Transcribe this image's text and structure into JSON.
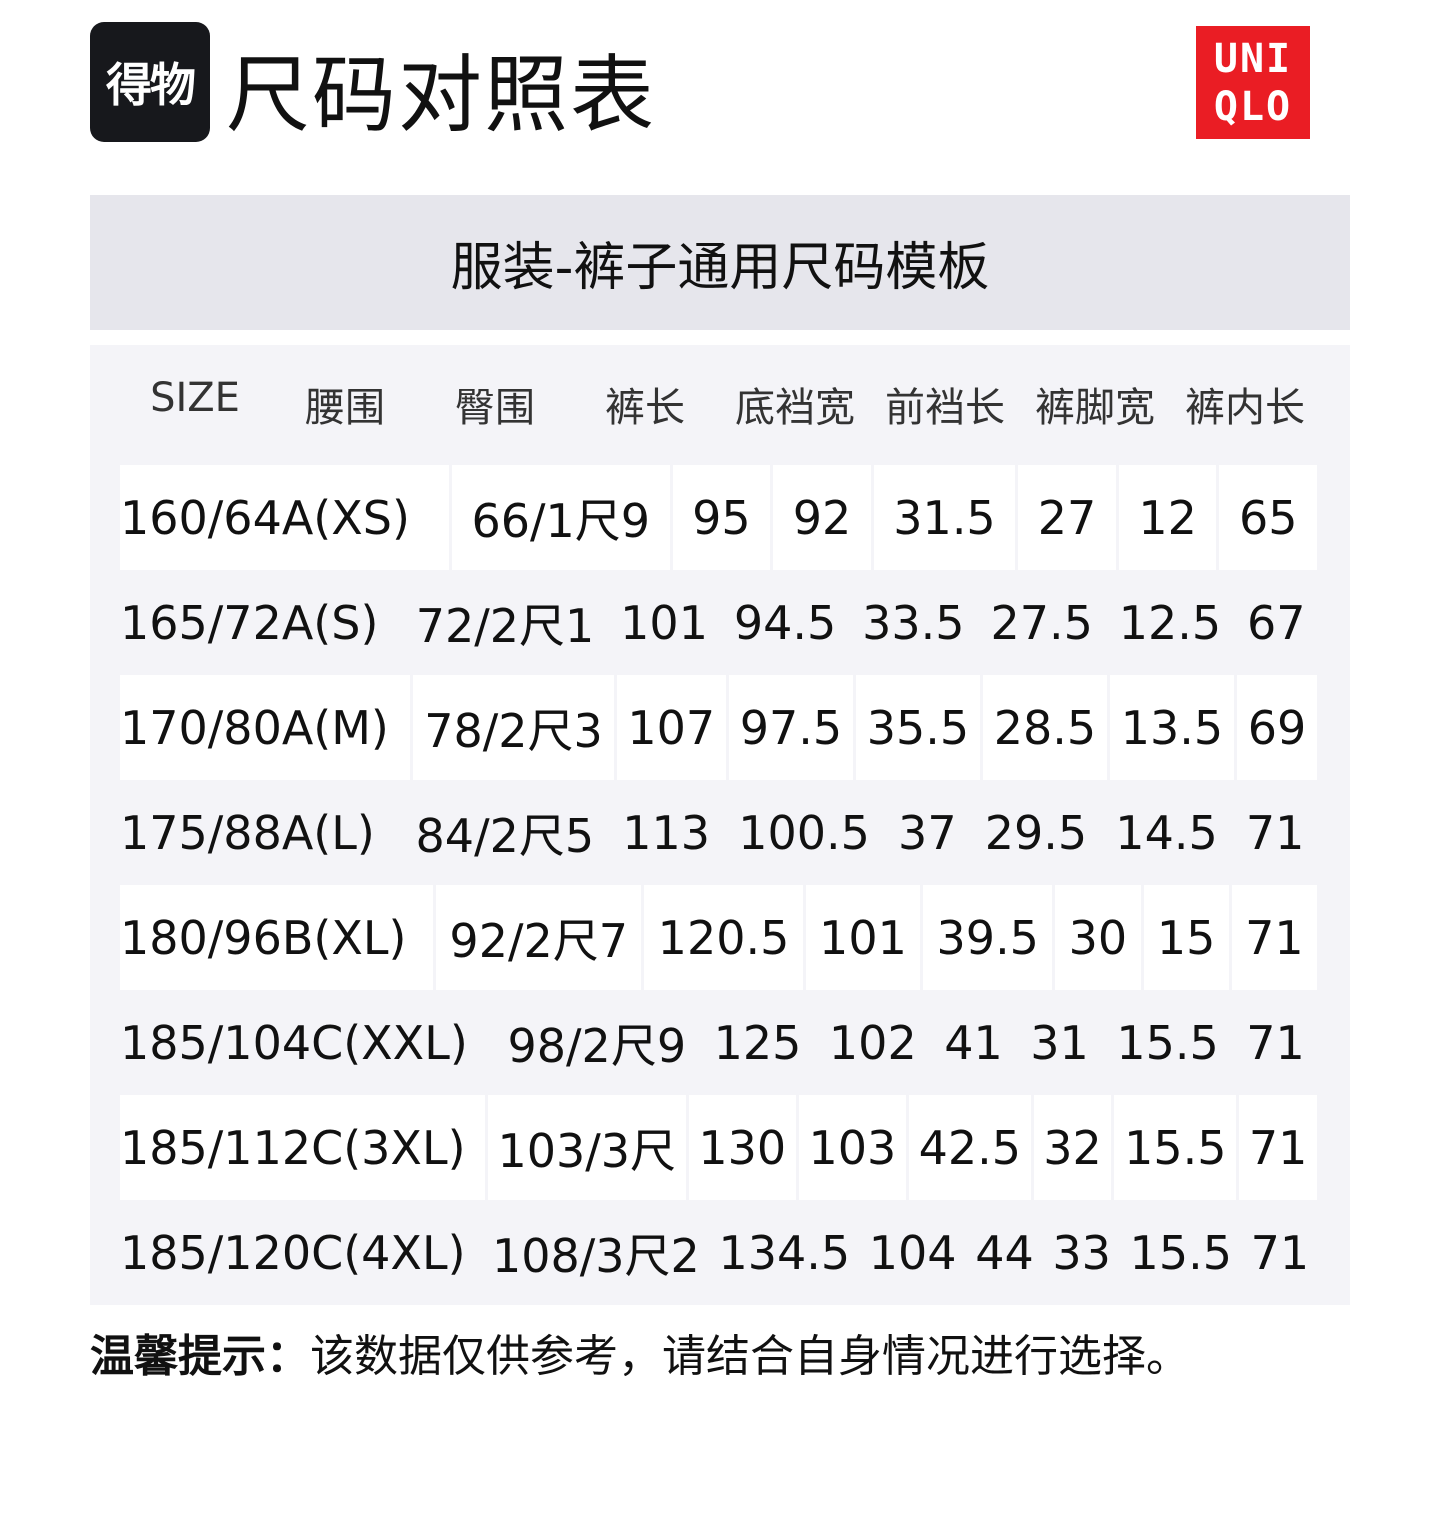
{
  "header": {
    "brand_logo": "得物",
    "title": "尺码对照表",
    "uniqlo_logo": [
      "UNI",
      "QLO"
    ],
    "colors": {
      "uniqlo_red": "#ea1d24",
      "brand_dark": "#17181c"
    }
  },
  "band_title": "服装-裤子通用尺码模板",
  "table": {
    "columns": [
      "SIZE",
      "腰围",
      "臀围",
      "裤长",
      "底裆宽",
      "前裆长",
      "裤脚宽",
      "裤内长"
    ],
    "rows": [
      [
        "160/64A(XS)",
        "66/1尺9",
        "95",
        "92",
        "31.5",
        "27",
        "12",
        "65"
      ],
      [
        "165/72A(S)",
        "72/2尺1",
        "101",
        "94.5",
        "33.5",
        "27.5",
        "12.5",
        "67"
      ],
      [
        "170/80A(M)",
        "78/2尺3",
        "107",
        "97.5",
        "35.5",
        "28.5",
        "13.5",
        "69"
      ],
      [
        "175/88A(L)",
        "84/2尺5",
        "113",
        "100.5",
        "37",
        "29.5",
        "14.5",
        "71"
      ],
      [
        "180/96B(XL)",
        "92/2尺7",
        "120.5",
        "101",
        "39.5",
        "30",
        "15",
        "71"
      ],
      [
        "185/104C(XXL)",
        "98/2尺9",
        "125",
        "102",
        "41",
        "31",
        "15.5",
        "71"
      ],
      [
        "185/112C(3XL)",
        "103/3尺",
        "130",
        "103",
        "42.5",
        "32",
        "15.5",
        "71"
      ],
      [
        "185/120C(4XL)",
        "108/3尺2",
        "134.5",
        "104",
        "44",
        "33",
        "15.5",
        "71"
      ]
    ]
  },
  "tip": {
    "label": "温馨提示：",
    "text": "该数据仅供参考，请结合自身情况进行选择。"
  }
}
